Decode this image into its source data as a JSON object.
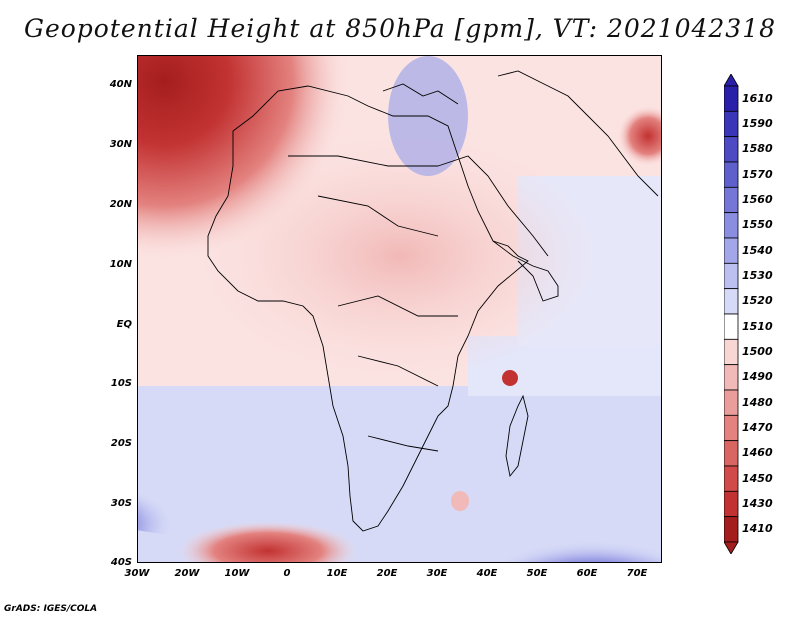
{
  "title": "Geopotential Height at 850hPa [gpm], VT: 2021042318",
  "footer": "GrADS: IGES/COLA",
  "map": {
    "lat_labels": [
      "40N",
      "30N",
      "20N",
      "10N",
      "EQ",
      "10S",
      "20S",
      "30S",
      "40S"
    ],
    "lon_labels": [
      "30W",
      "20W",
      "10W",
      "0",
      "10E",
      "20E",
      "30E",
      "40E",
      "50E",
      "60E",
      "70E"
    ]
  },
  "colorbar": {
    "levels": [
      "1610",
      "1590",
      "1580",
      "1570",
      "1560",
      "1550",
      "1540",
      "1530",
      "1520",
      "1510",
      "1500",
      "1490",
      "1480",
      "1470",
      "1460",
      "1450",
      "1430",
      "1410"
    ],
    "colors": [
      "#2a1fa8",
      "#3b36b8",
      "#4d4ac4",
      "#6060cd",
      "#7576d6",
      "#8b8de0",
      "#a3a6e8",
      "#bcc0f0",
      "#d6daf7",
      "#ffffff",
      "#f8d6d4",
      "#f1b9b7",
      "#ea9e9b",
      "#e3827f",
      "#da6663",
      "#d04b49",
      "#c23232",
      "#a51e1e"
    ]
  }
}
